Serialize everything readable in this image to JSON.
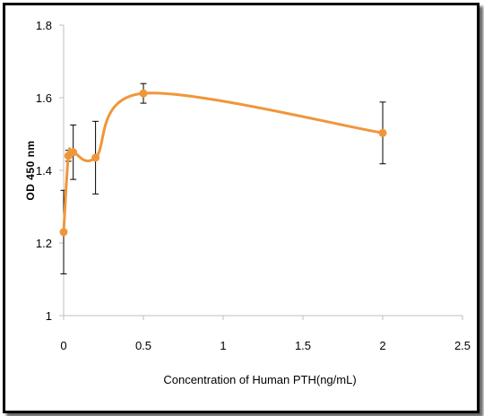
{
  "chart_data": {
    "type": "line",
    "title": "",
    "xlabel": "Concentration of Human PTH(ng/mL)",
    "ylabel": "OD 450 nm",
    "xlim": [
      0,
      2.5
    ],
    "ylim": [
      1,
      1.8
    ],
    "x_ticks": [
      "0",
      "0.5",
      "1",
      "1.5",
      "2",
      "2.5"
    ],
    "y_ticks": [
      "1",
      "1.2",
      "1.4",
      "1.6",
      "1.8"
    ],
    "smooth": true,
    "grid": false,
    "legend": "none",
    "color": "#F0963A",
    "series": [
      {
        "x": [
          0,
          0.03,
          0.06,
          0.2,
          0.5,
          2
        ],
        "y": [
          1.23,
          1.44,
          1.45,
          1.435,
          1.612,
          1.503
        ],
        "error": [
          0.115,
          0.015,
          0.075,
          0.1,
          0.027,
          0.085
        ]
      }
    ]
  }
}
